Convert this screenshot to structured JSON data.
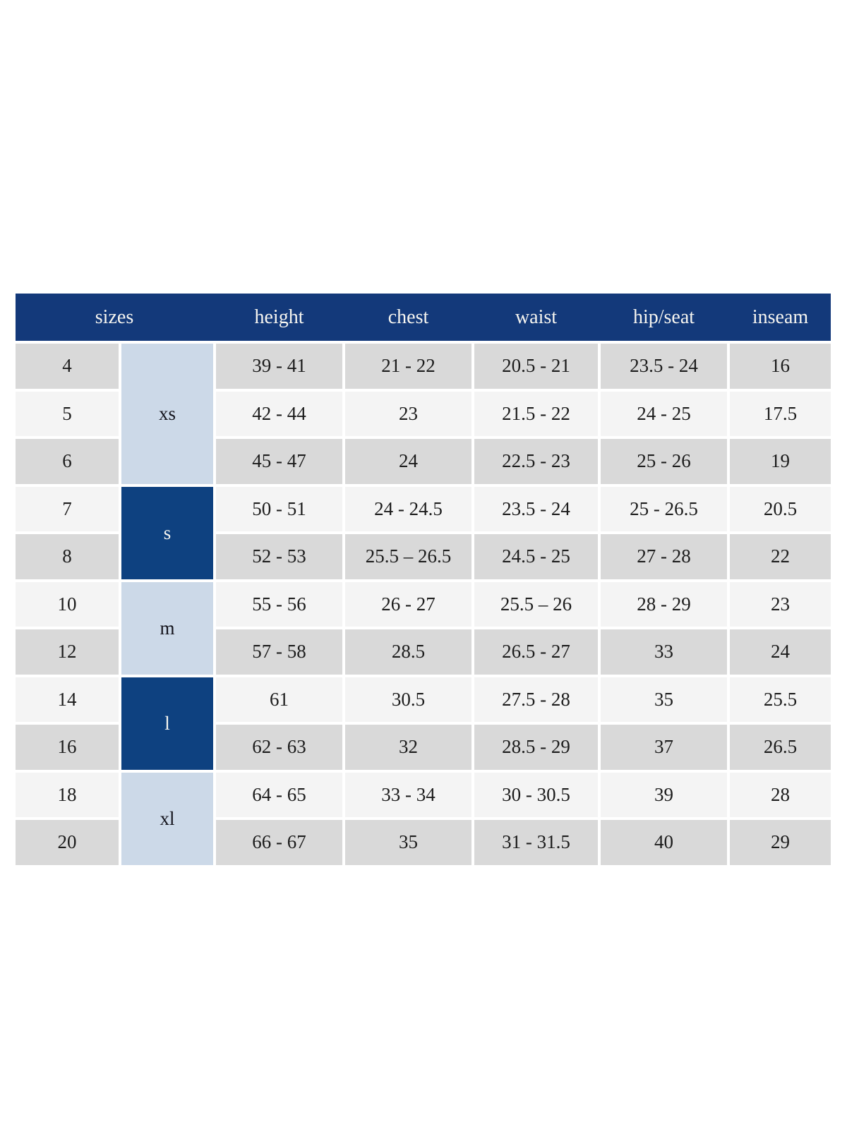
{
  "chart_data": {
    "type": "table",
    "title": "",
    "headers": [
      "sizes",
      "height",
      "chest",
      "waist",
      "hip/seat",
      "inseam"
    ],
    "column_keys": [
      "size",
      "group",
      "height",
      "chest",
      "waist",
      "hip_seat",
      "inseam"
    ],
    "groups": [
      {
        "label": "xs",
        "row_span": 3,
        "variant": "light"
      },
      {
        "label": "s",
        "row_span": 2,
        "variant": "dark"
      },
      {
        "label": "m",
        "row_span": 2,
        "variant": "light"
      },
      {
        "label": "l",
        "row_span": 2,
        "variant": "dark"
      },
      {
        "label": "xl",
        "row_span": 2,
        "variant": "light"
      }
    ],
    "rows": [
      {
        "size": "4",
        "height": "39 - 41",
        "chest": "21 - 22",
        "waist": "20.5 - 21",
        "hip_seat": "23.5 - 24",
        "inseam": "16"
      },
      {
        "size": "5",
        "height": "42 - 44",
        "chest": "23",
        "waist": "21.5 - 22",
        "hip_seat": "24 - 25",
        "inseam": "17.5"
      },
      {
        "size": "6",
        "height": "45 - 47",
        "chest": "24",
        "waist": "22.5 - 23",
        "hip_seat": "25 - 26",
        "inseam": "19"
      },
      {
        "size": "7",
        "height": "50 - 51",
        "chest": "24 - 24.5",
        "waist": "23.5 - 24",
        "hip_seat": "25 - 26.5",
        "inseam": "20.5"
      },
      {
        "size": "8",
        "height": "52 - 53",
        "chest": "25.5 – 26.5",
        "waist": "24.5 - 25",
        "hip_seat": "27 - 28",
        "inseam": "22"
      },
      {
        "size": "10",
        "height": "55 - 56",
        "chest": "26 - 27",
        "waist": "25.5 – 26",
        "hip_seat": "28 - 29",
        "inseam": "23"
      },
      {
        "size": "12",
        "height": "57 - 58",
        "chest": "28.5",
        "waist": "26.5 - 27",
        "hip_seat": "33",
        "inseam": "24"
      },
      {
        "size": "14",
        "height": "61",
        "chest": "30.5",
        "waist": "27.5 - 28",
        "hip_seat": "35",
        "inseam": "25.5"
      },
      {
        "size": "16",
        "height": "62 - 63",
        "chest": "32",
        "waist": "28.5 - 29",
        "hip_seat": "37",
        "inseam": "26.5"
      },
      {
        "size": "18",
        "height": "64 - 65",
        "chest": "33 - 34",
        "waist": "30 - 30.5",
        "hip_seat": "39",
        "inseam": "28"
      },
      {
        "size": "20",
        "height": "66 - 67",
        "chest": "35",
        "waist": "31 - 31.5",
        "hip_seat": "40",
        "inseam": "29"
      }
    ],
    "row_stripe_order": [
      "gray",
      "light",
      "gray",
      "light",
      "gray",
      "light",
      "gray",
      "light",
      "gray",
      "light",
      "gray"
    ],
    "colors": {
      "header_bg": "#13397a",
      "header_text": "#f6f5f0",
      "group_dark_bg": "#0e4180",
      "group_dark_text": "#f6f5f0",
      "group_light_bg": "#ccd9e8",
      "group_light_text": "#14141c",
      "row_gray": "#d9d9d9",
      "row_light": "#f4f4f4",
      "cell_text": "#1c1c1c"
    }
  }
}
